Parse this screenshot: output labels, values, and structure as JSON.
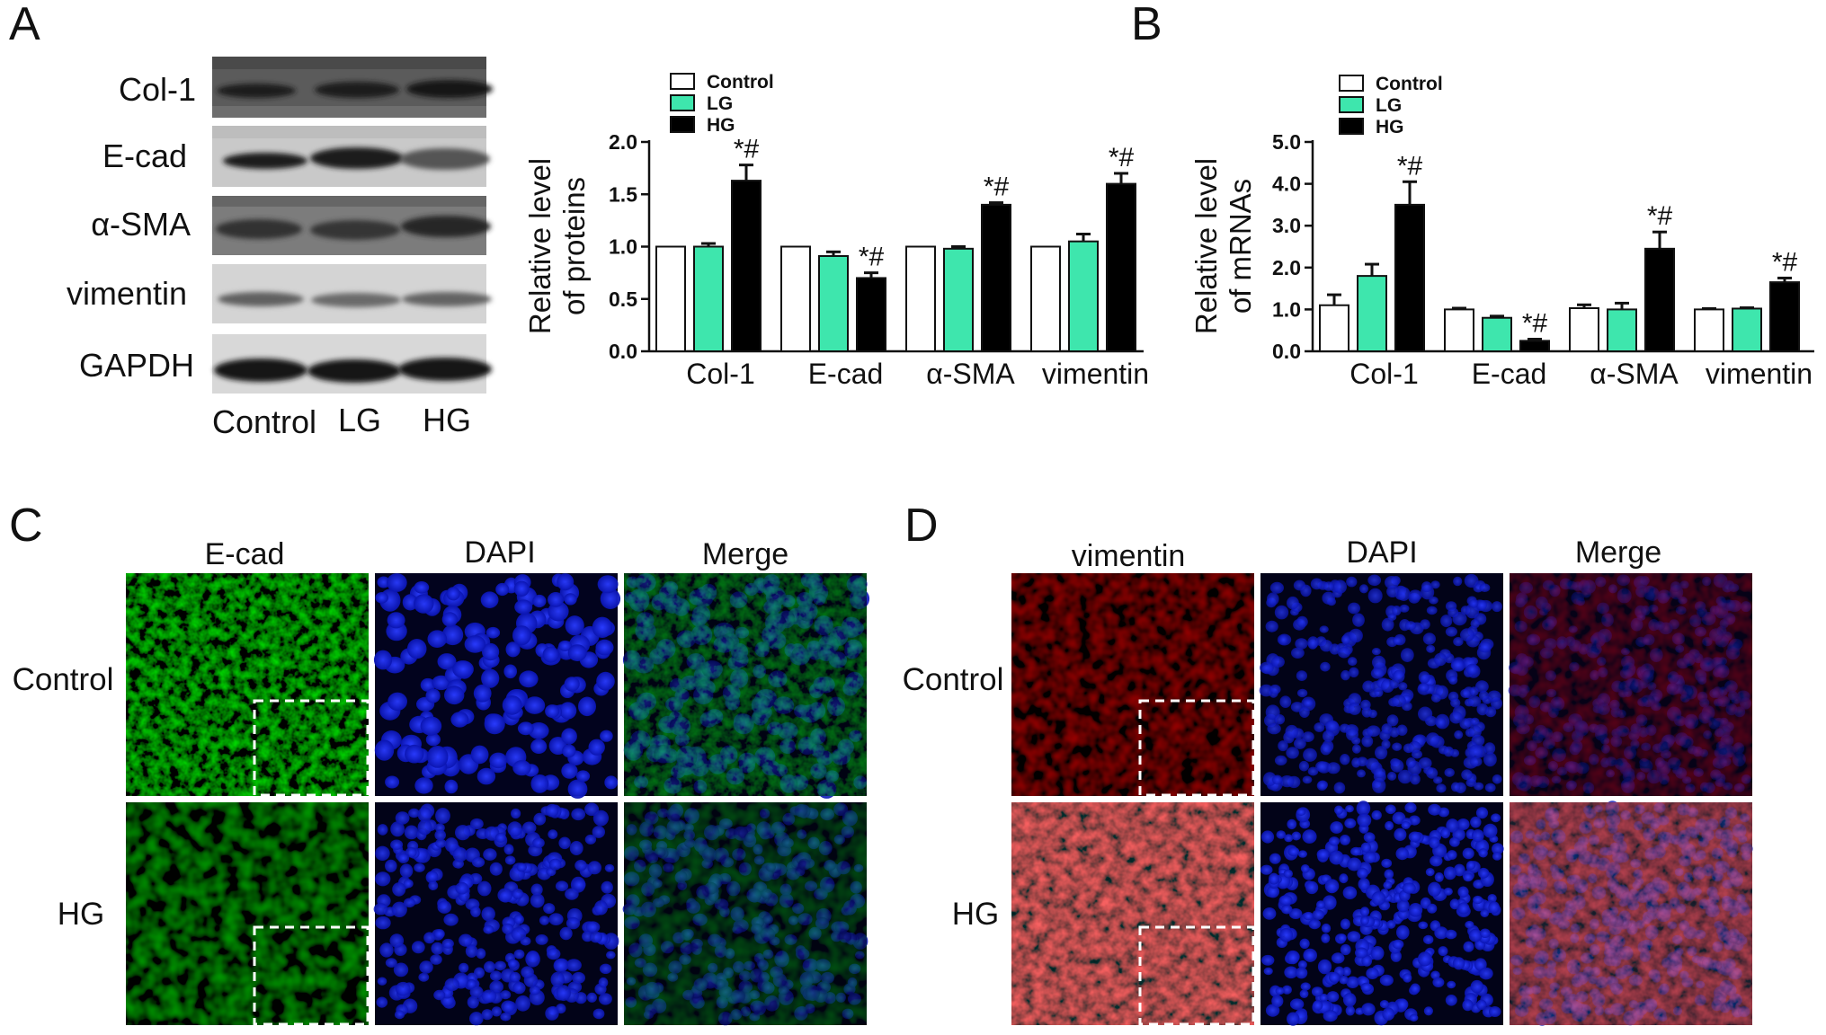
{
  "figure": {
    "panel_letters": [
      "A",
      "B",
      "C",
      "D"
    ],
    "colors": {
      "Control": "#ffffff",
      "LG": "#3ee6ad",
      "HG": "#000000"
    }
  },
  "panel_a": {
    "blot_rows": [
      "Col-1",
      "E-cad",
      "α-SMA",
      "vimentin",
      "GAPDH"
    ],
    "blot_columns": [
      "Control",
      "LG",
      "HG"
    ]
  },
  "panel_c": {
    "columns": [
      "E-cad",
      "DAPI",
      "Merge"
    ],
    "rows": [
      "Control",
      "HG"
    ]
  },
  "panel_d": {
    "columns": [
      "vimentin",
      "DAPI",
      "Merge"
    ],
    "rows": [
      "Control",
      "HG"
    ]
  },
  "chart_data": [
    {
      "type": "bar",
      "panel": "A",
      "title": "",
      "ylabel": "Relative level of proteins",
      "ylabel_lines": [
        "Relative level",
        "of proteins"
      ],
      "xlabel": "",
      "categories": [
        "Col-1",
        "E-cad",
        "α-SMA",
        "vimentin"
      ],
      "ylim": [
        0,
        2.0
      ],
      "yticks": [
        "0.0",
        "0.5",
        "1.0",
        "1.5",
        "2.0"
      ],
      "legend": [
        "Control",
        "LG",
        "HG"
      ],
      "legend_placement": "top-left",
      "series": [
        {
          "name": "Control",
          "values": [
            1.0,
            1.0,
            1.0,
            1.0
          ],
          "errors": [
            0.0,
            0.0,
            0.0,
            0.0
          ]
        },
        {
          "name": "LG",
          "values": [
            1.0,
            0.91,
            0.98,
            1.05
          ],
          "errors": [
            0.03,
            0.04,
            0.02,
            0.07
          ]
        },
        {
          "name": "HG",
          "values": [
            1.63,
            0.7,
            1.4,
            1.6
          ],
          "errors": [
            0.15,
            0.05,
            0.02,
            0.1
          ]
        }
      ],
      "annotations": [
        "*#",
        "*#",
        "*#",
        "*#"
      ]
    },
    {
      "type": "bar",
      "panel": "B",
      "title": "",
      "ylabel": "Relative level of mRNAs",
      "ylabel_lines": [
        "Relative level",
        "of mRNAs"
      ],
      "xlabel": "",
      "categories": [
        "Col-1",
        "E-cad",
        "α-SMA",
        "vimentin"
      ],
      "ylim": [
        0,
        5.0
      ],
      "yticks": [
        "0.0",
        "1.0",
        "2.0",
        "3.0",
        "4.0",
        "5.0"
      ],
      "legend": [
        "Control",
        "LG",
        "HG"
      ],
      "legend_placement": "top-left",
      "series": [
        {
          "name": "Control",
          "values": [
            1.1,
            1.0,
            1.03,
            1.0
          ],
          "errors": [
            0.25,
            0.03,
            0.08,
            0.02
          ]
        },
        {
          "name": "LG",
          "values": [
            1.8,
            0.8,
            1.0,
            1.02
          ],
          "errors": [
            0.28,
            0.04,
            0.15,
            0.02
          ]
        },
        {
          "name": "HG",
          "values": [
            3.5,
            0.25,
            2.45,
            1.65
          ],
          "errors": [
            0.55,
            0.04,
            0.4,
            0.1
          ]
        }
      ],
      "annotations": [
        "*#",
        "*#",
        "*#",
        "*#"
      ]
    }
  ]
}
